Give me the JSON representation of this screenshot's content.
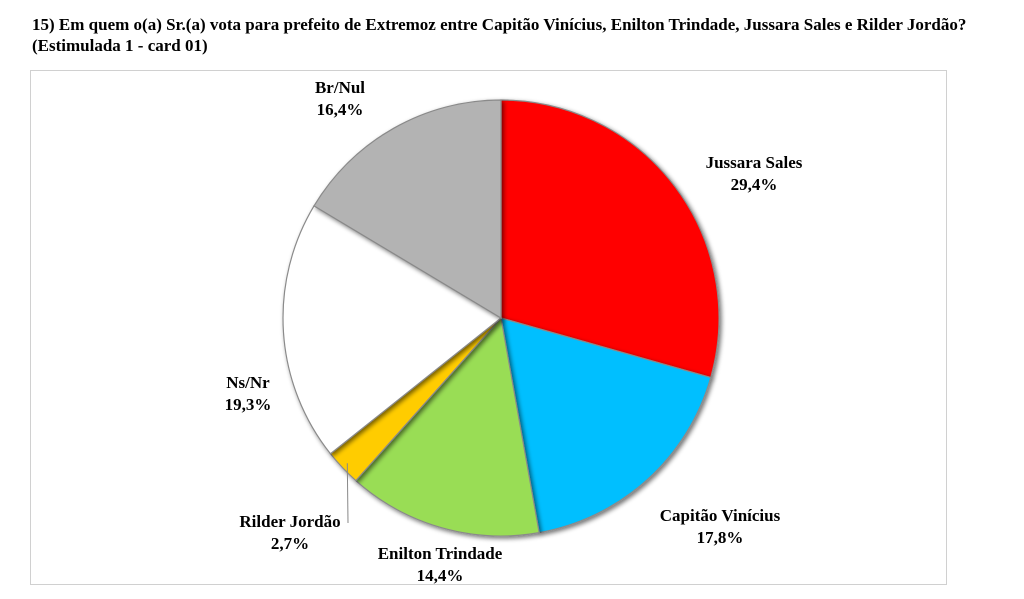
{
  "title": "15) Em quem o(a) Sr.(a) vota para prefeito de Extremoz entre Capitão Vinícius, Enilton Trindade, Jussara Sales e Rilder Jordão? (Estimulada 1 - card 01)",
  "chart_data": {
    "type": "pie",
    "title": "15) Em quem o(a) Sr.(a) vota para prefeito de Extremoz entre Capitão Vinícius, Enilton Trindade, Jussara Sales e Rilder Jordão? (Estimulada 1 - card 01)",
    "slices": [
      {
        "label": "Jussara Sales",
        "value": 29.4,
        "value_label": "29,4%",
        "color": "#ff0000"
      },
      {
        "label": "Capitão Vinícius",
        "value": 17.8,
        "value_label": "17,8%",
        "color": "#00bfff"
      },
      {
        "label": "Enilton Trindade",
        "value": 14.4,
        "value_label": "14,4%",
        "color": "#99dd55"
      },
      {
        "label": "Rilder Jordão",
        "value": 2.7,
        "value_label": "2,7%",
        "color": "#ffcc00"
      },
      {
        "label": "Ns/Nr",
        "value": 19.3,
        "value_label": "19,3%",
        "color": "#ffffff"
      },
      {
        "label": "Br/Nul",
        "value": 16.4,
        "value_label": "16,4%",
        "color": "#b3b3b3"
      }
    ]
  }
}
